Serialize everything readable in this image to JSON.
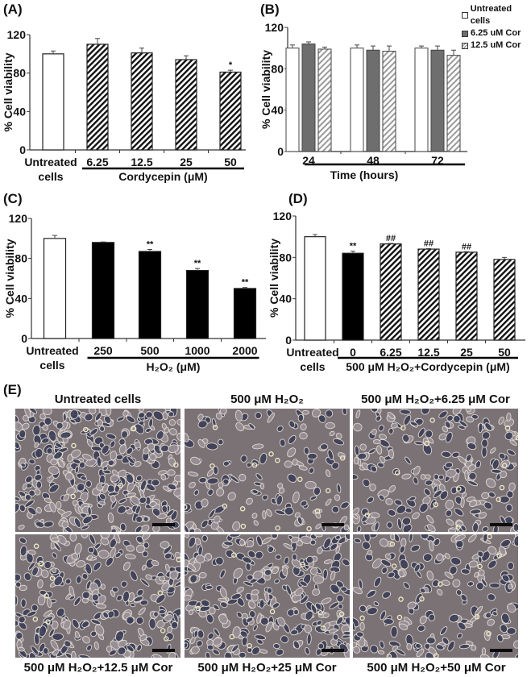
{
  "figure": {
    "panels": {
      "A": {
        "label": "(A)"
      },
      "B": {
        "label": "(B)"
      },
      "C": {
        "label": "(C)"
      },
      "D": {
        "label": "(D)"
      },
      "E": {
        "label": "(E)"
      }
    }
  },
  "legend_B": {
    "items": [
      {
        "label": "Untreated cells",
        "color": "#ffffff"
      },
      {
        "label": "6.25 uM Cor",
        "color": "#6e6e6e"
      },
      {
        "label": "12.5 uM Cor",
        "color": "hatched-light"
      }
    ]
  },
  "chart_data": [
    {
      "id": "A",
      "type": "bar",
      "title": "(A)",
      "ylabel": "% Cell viability",
      "xlabel": "Cordycepin (μM)",
      "ylim": [
        0,
        120
      ],
      "yticks": [
        0,
        40,
        80,
        120
      ],
      "categories": [
        "Untreated cells",
        "6.25",
        "12.5",
        "25",
        "50"
      ],
      "values": [
        100,
        110,
        101,
        94,
        81
      ],
      "errors": [
        3,
        6,
        5,
        4,
        2
      ],
      "annotations": [
        "",
        "",
        "",
        "",
        "*"
      ],
      "fills": [
        "white",
        "hatch",
        "hatch",
        "hatch",
        "hatch"
      ]
    },
    {
      "id": "B",
      "type": "bar",
      "title": "(B)",
      "ylabel": "% Cell viability",
      "xlabel": "Time (hours)",
      "ylim": [
        0,
        120
      ],
      "yticks": [
        0,
        40,
        80,
        120
      ],
      "categories": [
        "24",
        "48",
        "72"
      ],
      "legend_position": "top-right",
      "series": [
        {
          "name": "Untreated cells",
          "values": [
            100,
            100,
            100
          ],
          "errors": [
            3,
            3,
            2
          ]
        },
        {
          "name": "6.25 uM Cor",
          "values": [
            104,
            98,
            98
          ],
          "errors": [
            2,
            4,
            4
          ]
        },
        {
          "name": "12.5 uM Cor",
          "values": [
            99,
            97,
            93
          ],
          "errors": [
            2,
            5,
            5
          ]
        }
      ]
    },
    {
      "id": "C",
      "type": "bar",
      "title": "(C)",
      "ylabel": "% Cell viability",
      "xlabel": "H2O2 (μM)",
      "ylim": [
        0,
        120
      ],
      "yticks": [
        0,
        40,
        80,
        120
      ],
      "categories": [
        "Untreated cells",
        "250",
        "500",
        "1000",
        "2000"
      ],
      "values": [
        100,
        96,
        87,
        68,
        50
      ],
      "errors": [
        3,
        0.5,
        2,
        2,
        1
      ],
      "annotations": [
        "",
        "",
        "**",
        "**",
        "**"
      ],
      "fills": [
        "white",
        "black",
        "black",
        "black",
        "black"
      ]
    },
    {
      "id": "D",
      "type": "bar",
      "title": "(D)",
      "ylabel": "% Cell viability",
      "xlabel": "500 μM H2O2+Cordycepin (μM)",
      "ylim": [
        0,
        120
      ],
      "yticks": [
        0,
        40,
        80,
        120
      ],
      "categories": [
        "Untreated cells",
        "0",
        "6.25",
        "12.5",
        "25",
        "50"
      ],
      "values": [
        100,
        84,
        93,
        88,
        85,
        78
      ],
      "errors": [
        2,
        2,
        0.5,
        0.5,
        0.5,
        2
      ],
      "annotations": [
        "",
        "**",
        "##",
        "##",
        "##",
        ""
      ],
      "fills": [
        "white",
        "black",
        "hatch",
        "hatch",
        "hatch",
        "hatch"
      ]
    }
  ],
  "micrographs": {
    "top_titles": [
      "Untreated cells",
      "500 μM H₂O₂",
      "500 μM H₂O₂+6.25 μM Cor"
    ],
    "bottom_titles": [
      "500 μM H₂O₂+12.5 μM Cor",
      "500 μM H₂O₂+25 μM Cor",
      "500 μM H₂O₂+50 μM Cor"
    ],
    "density": [
      0.85,
      0.35,
      0.5,
      0.65,
      0.7,
      0.45
    ]
  }
}
